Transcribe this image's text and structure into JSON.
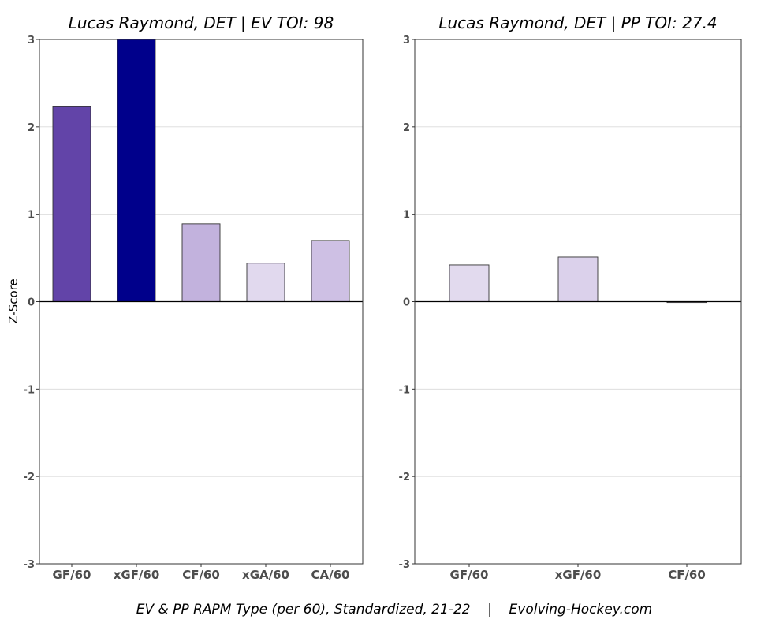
{
  "caption": "EV & PP RAPM Type (per 60), Standardized, 21-22    |    Evolving-Hockey.com",
  "ylabel": "Z-Score",
  "chart_data": [
    {
      "type": "bar",
      "title": "Lucas Raymond, DET  |  EV TOI: 98",
      "ylabel": "Z-Score",
      "ylim": [
        -3,
        3
      ],
      "yticks": [
        -3,
        -2,
        -1,
        0,
        1,
        2,
        3
      ],
      "grid": true,
      "categories": [
        "GF/60",
        "xGF/60",
        "CF/60",
        "xGA/60",
        "CA/60"
      ],
      "values": [
        2.23,
        3.0,
        0.89,
        0.44,
        0.7
      ],
      "colors": [
        "#6244a8",
        "#00008b",
        "#c2b2dd",
        "#e1d9ee",
        "#cec0e4"
      ]
    },
    {
      "type": "bar",
      "title": "Lucas Raymond, DET  |  PP TOI: 27.4",
      "ylabel": "",
      "ylim": [
        -3,
        3
      ],
      "yticks": [
        -3,
        -2,
        -1,
        0,
        1,
        2,
        3
      ],
      "grid": true,
      "categories": [
        "GF/60",
        "xGF/60",
        "CF/60"
      ],
      "values": [
        0.42,
        0.51,
        -0.01
      ],
      "colors": [
        "#e2daee",
        "#dbd1eb",
        "#f2eef8"
      ]
    }
  ]
}
